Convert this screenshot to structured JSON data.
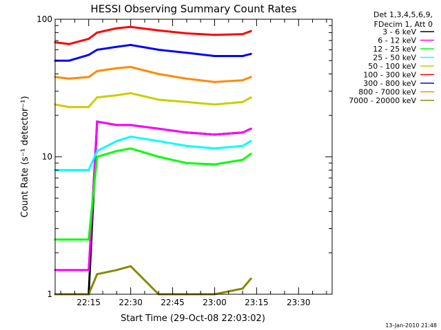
{
  "chart_data": {
    "type": "line",
    "title": "HESSI Observing Summary Count Rates",
    "xlabel": "Start Time (29-Oct-08 22:03:02)",
    "ylabel": "Count Rate (s⁻¹ detector⁻¹)",
    "y_scale": "log",
    "ylim": [
      1,
      100
    ],
    "y_ticks": [
      {
        "value": 1,
        "label": "1"
      },
      {
        "value": 10,
        "label": "10"
      },
      {
        "value": 100,
        "label": "100"
      }
    ],
    "x_ticks": [
      "22:15",
      "22:30",
      "22:45",
      "23:00",
      "23:15",
      "23:30"
    ],
    "legend_header": [
      "Det 1,3,4,5,6,9,",
      "FDecim 1, Att 0"
    ],
    "legend_position": "right",
    "footer": "13-Jan-2010 21:48",
    "series": [
      {
        "name": "3 - 6 keV",
        "color": "#000000",
        "x": [
          "22:03",
          "22:08",
          "22:15",
          "22:18",
          "22:25",
          "22:30",
          "22:40",
          "22:50",
          "23:00",
          "23:10",
          "23:13"
        ],
        "y": [
          1,
          1,
          1,
          18,
          17,
          17,
          16,
          15,
          14.5,
          15,
          16
        ]
      },
      {
        "name": "6 - 12 keV",
        "color": "#ff00ff",
        "x": [
          "22:03",
          "22:08",
          "22:15",
          "22:18",
          "22:25",
          "22:30",
          "22:40",
          "22:50",
          "23:00",
          "23:10",
          "23:13"
        ],
        "y": [
          1.5,
          1.5,
          1.5,
          18,
          17,
          17,
          16,
          15,
          14.5,
          15,
          16
        ]
      },
      {
        "name": "12 - 25 keV",
        "color": "#00ff00",
        "x": [
          "22:03",
          "22:08",
          "22:15",
          "22:18",
          "22:25",
          "22:30",
          "22:40",
          "22:50",
          "23:00",
          "23:10",
          "23:13"
        ],
        "y": [
          2.5,
          2.5,
          2.5,
          10,
          11,
          11.5,
          10,
          9,
          8.8,
          9.5,
          10.5
        ]
      },
      {
        "name": "25 - 50 keV",
        "color": "#00ffff",
        "x": [
          "22:03",
          "22:08",
          "22:15",
          "22:18",
          "22:25",
          "22:30",
          "22:40",
          "22:50",
          "23:00",
          "23:10",
          "23:13"
        ],
        "y": [
          8,
          8,
          8,
          11,
          13,
          14,
          13,
          12,
          11.5,
          12,
          13
        ]
      },
      {
        "name": "50 - 100 keV",
        "color": "#cccc00",
        "x": [
          "22:03",
          "22:08",
          "22:15",
          "22:18",
          "22:25",
          "22:30",
          "22:40",
          "22:50",
          "23:00",
          "23:10",
          "23:13"
        ],
        "y": [
          24,
          23,
          23,
          27,
          28,
          29,
          26,
          25,
          24,
          25,
          27
        ]
      },
      {
        "name": "100 - 300 keV",
        "color": "#ff0000",
        "x": [
          "22:03",
          "22:08",
          "22:15",
          "22:18",
          "22:25",
          "22:30",
          "22:40",
          "22:50",
          "23:00",
          "23:10",
          "23:13"
        ],
        "y": [
          68,
          66,
          72,
          80,
          86,
          88,
          83,
          79,
          77,
          78,
          82
        ]
      },
      {
        "name": "300 - 800 keV",
        "color": "#0000ff",
        "x": [
          "22:03",
          "22:08",
          "22:15",
          "22:18",
          "22:25",
          "22:30",
          "22:40",
          "22:50",
          "23:00",
          "23:10",
          "23:13"
        ],
        "y": [
          50,
          50,
          55,
          60,
          63,
          65,
          60,
          57,
          54,
          54,
          56
        ]
      },
      {
        "name": "800 - 7000 keV",
        "color": "#ff8800",
        "x": [
          "22:03",
          "22:08",
          "22:15",
          "22:18",
          "22:25",
          "22:30",
          "22:40",
          "22:50",
          "23:00",
          "23:10",
          "23:13"
        ],
        "y": [
          38,
          37,
          38,
          42,
          44,
          45,
          40,
          37,
          35,
          36,
          38
        ]
      },
      {
        "name": "7000 - 20000 keV",
        "color": "#888800",
        "x": [
          "22:03",
          "22:08",
          "22:15",
          "22:18",
          "22:25",
          "22:30",
          "22:40",
          "22:50",
          "23:00",
          "23:10",
          "23:13"
        ],
        "y": [
          1,
          1,
          1,
          1.4,
          1.5,
          1.6,
          1,
          1,
          1,
          1.1,
          1.3
        ]
      }
    ]
  }
}
